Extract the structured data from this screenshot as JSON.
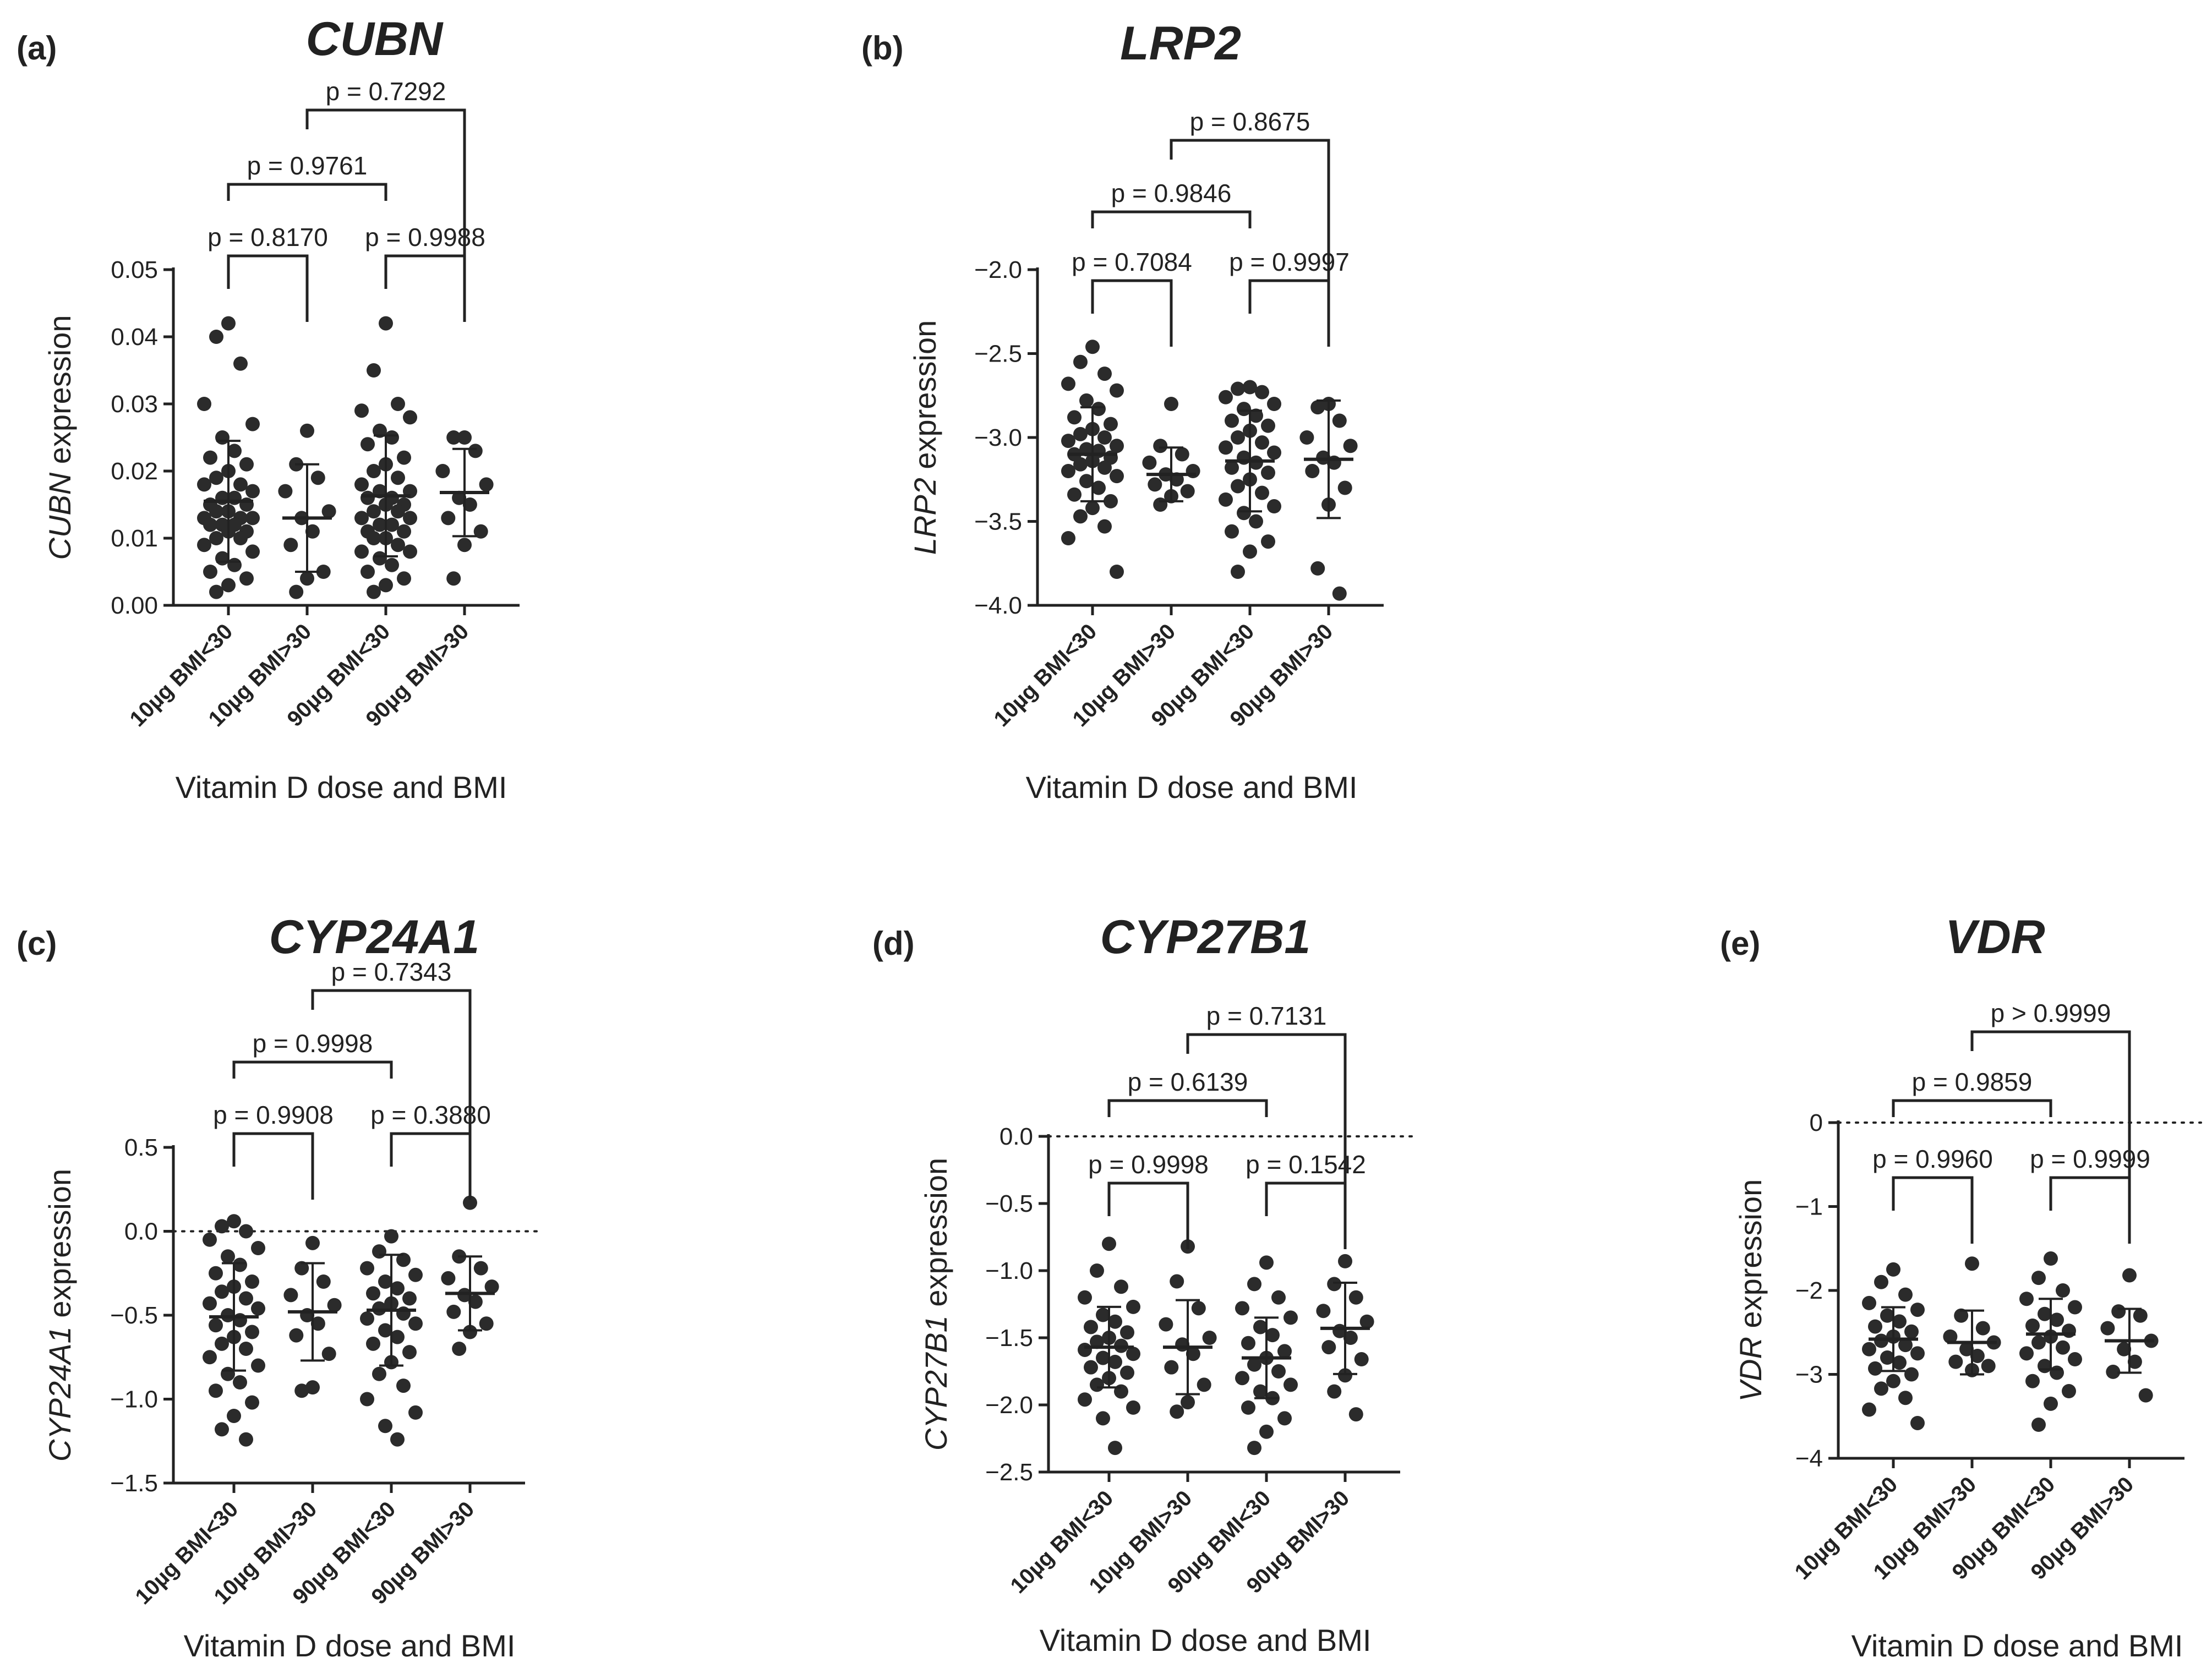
{
  "xlabel": "Vitamin D dose and BMI",
  "categories": [
    "10µg BMI<30",
    "10µg BMI>30",
    "90µg BMI<30",
    "90µg BMI>30"
  ],
  "chart_data": [
    {
      "id": "a",
      "type": "scatter",
      "letter": "(a)",
      "gene": "CUBN",
      "ylabel_gene": "CUBN",
      "ylabel_rest": " expression",
      "ylim": [
        0,
        0.05
      ],
      "yticks": [
        "0.00",
        "0.01",
        "0.02",
        "0.03",
        "0.04",
        "0.05"
      ],
      "yticks_values": [
        0,
        0.01,
        0.02,
        0.03,
        0.04,
        0.05
      ],
      "zero_line": false,
      "series": [
        {
          "name": "10µg BMI<30",
          "mean": 0.0155,
          "sd": 0.009,
          "values": [
            0.042,
            0.04,
            0.036,
            0.03,
            0.027,
            0.025,
            0.023,
            0.022,
            0.021,
            0.02,
            0.019,
            0.018,
            0.018,
            0.017,
            0.016,
            0.016,
            0.015,
            0.015,
            0.014,
            0.014,
            0.013,
            0.013,
            0.013,
            0.012,
            0.012,
            0.012,
            0.011,
            0.011,
            0.01,
            0.01,
            0.009,
            0.008,
            0.007,
            0.006,
            0.005,
            0.004,
            0.003,
            0.002
          ]
        },
        {
          "name": "10µg BMI>30",
          "mean": 0.013,
          "sd": 0.008,
          "values": [
            0.026,
            0.021,
            0.019,
            0.017,
            0.014,
            0.013,
            0.011,
            0.009,
            0.005,
            0.004,
            0.002
          ]
        },
        {
          "name": "90µg BMI<30",
          "mean": 0.0163,
          "sd": 0.009,
          "values": [
            0.042,
            0.035,
            0.03,
            0.029,
            0.028,
            0.026,
            0.025,
            0.024,
            0.022,
            0.021,
            0.02,
            0.019,
            0.018,
            0.017,
            0.017,
            0.016,
            0.016,
            0.015,
            0.015,
            0.014,
            0.014,
            0.013,
            0.013,
            0.012,
            0.012,
            0.011,
            0.011,
            0.01,
            0.01,
            0.009,
            0.008,
            0.008,
            0.007,
            0.006,
            0.005,
            0.004,
            0.003,
            0.002
          ]
        },
        {
          "name": "90µg BMI>30",
          "mean": 0.0168,
          "sd": 0.0065,
          "values": [
            0.025,
            0.025,
            0.023,
            0.02,
            0.018,
            0.016,
            0.015,
            0.013,
            0.011,
            0.009,
            0.004
          ]
        }
      ],
      "comparisons": [
        {
          "a": 0,
          "b": 1,
          "p": "p = 0.8170"
        },
        {
          "a": 2,
          "b": 3,
          "p": "p = 0.9988"
        },
        {
          "a": 0,
          "b": 2,
          "p": "p = 0.9761"
        },
        {
          "a": 1,
          "b": 3,
          "p": "p = 0.7292"
        }
      ]
    },
    {
      "id": "b",
      "type": "scatter",
      "letter": "(b)",
      "gene": "LRP2",
      "ylabel_gene": "LRP2",
      "ylabel_rest": " expression",
      "ylim": [
        -4.0,
        -2.0
      ],
      "yticks": [
        "−4.0",
        "−3.5",
        "−3.0",
        "−2.5",
        "−2.0"
      ],
      "yticks_values": [
        -4.0,
        -3.5,
        -3.0,
        -2.5,
        -2.0
      ],
      "zero_line": false,
      "series": [
        {
          "name": "10µg BMI<30",
          "mean": -3.1,
          "sd": 0.28,
          "values": [
            -2.46,
            -2.55,
            -2.62,
            -2.68,
            -2.72,
            -2.78,
            -2.83,
            -2.88,
            -2.92,
            -2.95,
            -2.98,
            -3.0,
            -3.02,
            -3.05,
            -3.07,
            -3.08,
            -3.1,
            -3.12,
            -3.14,
            -3.16,
            -3.18,
            -3.2,
            -3.23,
            -3.26,
            -3.3,
            -3.34,
            -3.38,
            -3.42,
            -3.47,
            -3.53,
            -3.6,
            -3.8
          ]
        },
        {
          "name": "10µg BMI>30",
          "mean": -3.22,
          "sd": 0.16,
          "values": [
            -2.8,
            -3.05,
            -3.1,
            -3.15,
            -3.2,
            -3.22,
            -3.25,
            -3.28,
            -3.32,
            -3.35,
            -3.4
          ]
        },
        {
          "name": "90µg BMI<30",
          "mean": -3.14,
          "sd": 0.3,
          "values": [
            -2.7,
            -2.71,
            -2.73,
            -2.76,
            -2.8,
            -2.83,
            -2.87,
            -2.9,
            -2.93,
            -2.96,
            -3.0,
            -3.03,
            -3.06,
            -3.09,
            -3.12,
            -3.15,
            -3.18,
            -3.21,
            -3.25,
            -3.29,
            -3.33,
            -3.37,
            -3.41,
            -3.45,
            -3.5,
            -3.56,
            -3.62,
            -3.68,
            -3.8
          ]
        },
        {
          "name": "90µg BMI>30",
          "mean": -3.13,
          "sd": 0.35,
          "values": [
            -2.8,
            -2.82,
            -2.9,
            -3.0,
            -3.05,
            -3.12,
            -3.15,
            -3.2,
            -3.3,
            -3.4,
            -3.78,
            -3.93
          ]
        }
      ],
      "comparisons": [
        {
          "a": 0,
          "b": 1,
          "p": "p = 0.7084"
        },
        {
          "a": 2,
          "b": 3,
          "p": "p = 0.9997"
        },
        {
          "a": 0,
          "b": 2,
          "p": "p = 0.9846"
        },
        {
          "a": 1,
          "b": 3,
          "p": "p = 0.8675"
        }
      ]
    },
    {
      "id": "c",
      "type": "scatter",
      "letter": "(c)",
      "gene": "CYP24A1",
      "ylabel_gene": "CYP24A1",
      "ylabel_rest": " expression",
      "ylim": [
        -1.5,
        0.5
      ],
      "yticks": [
        "−1.5",
        "−1.0",
        "−0.5",
        "0.0",
        "0.5"
      ],
      "yticks_values": [
        -1.5,
        -1.0,
        -0.5,
        0.0,
        0.5
      ],
      "zero_line": true,
      "series": [
        {
          "name": "10µg BMI<30",
          "mean": -0.51,
          "sd": 0.32,
          "values": [
            0.06,
            0.03,
            0.0,
            -0.05,
            -0.1,
            -0.15,
            -0.2,
            -0.25,
            -0.3,
            -0.33,
            -0.36,
            -0.4,
            -0.43,
            -0.46,
            -0.5,
            -0.53,
            -0.56,
            -0.6,
            -0.63,
            -0.67,
            -0.7,
            -0.75,
            -0.8,
            -0.85,
            -0.9,
            -0.95,
            -1.02,
            -1.1,
            -1.18,
            -1.24
          ]
        },
        {
          "name": "10µg BMI>30",
          "mean": -0.48,
          "sd": 0.29,
          "values": [
            -0.07,
            -0.22,
            -0.3,
            -0.38,
            -0.44,
            -0.5,
            -0.55,
            -0.62,
            -0.73,
            -0.93,
            -0.95
          ]
        },
        {
          "name": "90µg BMI<30",
          "mean": -0.47,
          "sd": 0.33,
          "values": [
            -0.03,
            -0.12,
            -0.17,
            -0.22,
            -0.26,
            -0.3,
            -0.34,
            -0.37,
            -0.4,
            -0.43,
            -0.46,
            -0.49,
            -0.52,
            -0.55,
            -0.59,
            -0.63,
            -0.67,
            -0.72,
            -0.78,
            -0.85,
            -0.92,
            -1.0,
            -1.08,
            -1.16,
            -1.24
          ]
        },
        {
          "name": "90µg BMI>30",
          "mean": -0.37,
          "sd": 0.22,
          "values": [
            0.17,
            -0.15,
            -0.22,
            -0.28,
            -0.33,
            -0.38,
            -0.42,
            -0.48,
            -0.55,
            -0.6,
            -0.7
          ]
        }
      ],
      "comparisons": [
        {
          "a": 0,
          "b": 1,
          "p": "p = 0.9908"
        },
        {
          "a": 2,
          "b": 3,
          "p": "p = 0.3880"
        },
        {
          "a": 0,
          "b": 2,
          "p": "p = 0.9998"
        },
        {
          "a": 1,
          "b": 3,
          "p": "p = 0.7343"
        }
      ]
    },
    {
      "id": "d",
      "type": "scatter",
      "letter": "(d)",
      "gene": "CYP27B1",
      "ylabel_gene": "CYP27B1",
      "ylabel_rest": " expression",
      "ylim": [
        -2.5,
        0.0
      ],
      "yticks": [
        "−2.5",
        "−2.0",
        "−1.5",
        "−1.0",
        "−0.5",
        "0.0"
      ],
      "yticks_values": [
        -2.5,
        -2.0,
        -1.5,
        -1.0,
        -0.5,
        0.0
      ],
      "zero_line": true,
      "series": [
        {
          "name": "10µg BMI<30",
          "mean": -1.57,
          "sd": 0.3,
          "values": [
            -0.8,
            -1.0,
            -1.12,
            -1.2,
            -1.27,
            -1.33,
            -1.38,
            -1.42,
            -1.46,
            -1.5,
            -1.53,
            -1.56,
            -1.59,
            -1.62,
            -1.65,
            -1.68,
            -1.72,
            -1.76,
            -1.8,
            -1.85,
            -1.9,
            -1.96,
            -2.02,
            -2.1,
            -2.32
          ]
        },
        {
          "name": "10µg BMI>30",
          "mean": -1.57,
          "sd": 0.35,
          "values": [
            -0.82,
            -1.08,
            -1.28,
            -1.4,
            -1.5,
            -1.55,
            -1.62,
            -1.72,
            -1.85,
            -1.98,
            -2.05
          ]
        },
        {
          "name": "90µg BMI<30",
          "mean": -1.65,
          "sd": 0.3,
          "values": [
            -0.94,
            -1.1,
            -1.2,
            -1.28,
            -1.35,
            -1.42,
            -1.48,
            -1.54,
            -1.6,
            -1.65,
            -1.7,
            -1.75,
            -1.8,
            -1.85,
            -1.9,
            -1.95,
            -2.02,
            -2.1,
            -2.2,
            -2.32
          ]
        },
        {
          "name": "90µg BMI>30",
          "mean": -1.43,
          "sd": 0.34,
          "values": [
            -0.93,
            -1.1,
            -1.2,
            -1.3,
            -1.38,
            -1.45,
            -1.5,
            -1.57,
            -1.66,
            -1.78,
            -1.9,
            -2.07
          ]
        }
      ],
      "comparisons": [
        {
          "a": 0,
          "b": 1,
          "p": "p = 0.9998"
        },
        {
          "a": 2,
          "b": 3,
          "p": "p = 0.1542"
        },
        {
          "a": 0,
          "b": 2,
          "p": "p = 0.6139"
        },
        {
          "a": 1,
          "b": 3,
          "p": "p = 0.7131"
        }
      ]
    },
    {
      "id": "e",
      "type": "scatter",
      "letter": "(e)",
      "gene": "VDR",
      "ylabel_gene": "VDR",
      "ylabel_rest": " expression",
      "ylim": [
        -4,
        0
      ],
      "yticks": [
        "−4",
        "−3",
        "−2",
        "−1",
        "0"
      ],
      "yticks_values": [
        -4,
        -3,
        -2,
        -1,
        0
      ],
      "zero_line": true,
      "series": [
        {
          "name": "10µg BMI<30",
          "mean": -2.58,
          "sd": 0.38,
          "values": [
            -1.75,
            -1.9,
            -2.05,
            -2.15,
            -2.23,
            -2.3,
            -2.37,
            -2.43,
            -2.49,
            -2.55,
            -2.6,
            -2.65,
            -2.7,
            -2.75,
            -2.8,
            -2.86,
            -2.93,
            -3.0,
            -3.08,
            -3.17,
            -3.28,
            -3.42,
            -3.58
          ]
        },
        {
          "name": "10µg BMI>30",
          "mean": -2.62,
          "sd": 0.38,
          "values": [
            -1.68,
            -2.3,
            -2.45,
            -2.55,
            -2.62,
            -2.7,
            -2.78,
            -2.85,
            -2.9,
            -2.95
          ]
        },
        {
          "name": "90µg BMI<30",
          "mean": -2.52,
          "sd": 0.42,
          "values": [
            -1.62,
            -1.85,
            -2.0,
            -2.1,
            -2.2,
            -2.28,
            -2.35,
            -2.42,
            -2.48,
            -2.55,
            -2.62,
            -2.68,
            -2.75,
            -2.82,
            -2.9,
            -2.98,
            -3.08,
            -3.2,
            -3.35,
            -3.6
          ]
        },
        {
          "name": "90µg BMI>30",
          "mean": -2.6,
          "sd": 0.38,
          "values": [
            -1.82,
            -2.25,
            -2.3,
            -2.45,
            -2.6,
            -2.7,
            -2.85,
            -2.97,
            -3.25
          ]
        }
      ],
      "comparisons": [
        {
          "a": 0,
          "b": 1,
          "p": "p = 0.9960"
        },
        {
          "a": 2,
          "b": 3,
          "p": "p = 0.9999"
        },
        {
          "a": 0,
          "b": 2,
          "p": "p = 0.9859"
        },
        {
          "a": 1,
          "b": 3,
          "p": "p > 0.9999"
        }
      ]
    }
  ]
}
